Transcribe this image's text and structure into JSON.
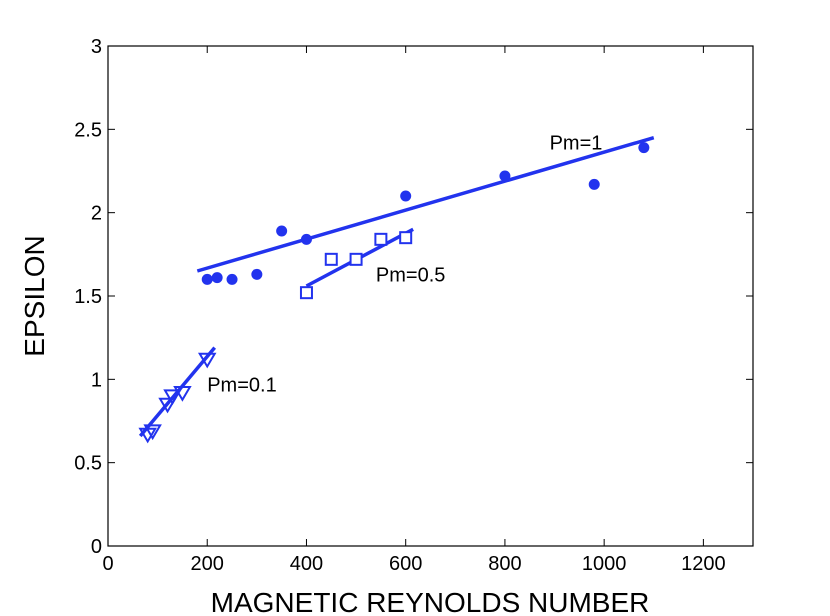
{
  "chart_data": {
    "type": "scatter",
    "title": "",
    "xlabel": "MAGNETIC REYNOLDS NUMBER",
    "ylabel": "EPSILON",
    "xlim": [
      0,
      1300
    ],
    "ylim": [
      0,
      3
    ],
    "xticks": [
      "0",
      "200",
      "400",
      "600",
      "800",
      "1000",
      "1200"
    ],
    "yticks": [
      "0",
      "0.5",
      "1",
      "1.5",
      "2",
      "2.5",
      "3"
    ],
    "color": "#2233ee",
    "grid": false,
    "series": [
      {
        "name": "Pm=1",
        "marker": "circle",
        "points": [
          [
            200,
            1.6
          ],
          [
            220,
            1.61
          ],
          [
            250,
            1.6
          ],
          [
            300,
            1.63
          ],
          [
            350,
            1.89
          ],
          [
            400,
            1.84
          ],
          [
            600,
            2.1
          ],
          [
            800,
            2.22
          ],
          [
            980,
            2.17
          ],
          [
            1080,
            2.39
          ]
        ],
        "fit": [
          [
            180,
            1.65
          ],
          [
            1100,
            2.45
          ]
        ]
      },
      {
        "name": "Pm=0.5",
        "marker": "square",
        "points": [
          [
            400,
            1.52
          ],
          [
            450,
            1.72
          ],
          [
            500,
            1.72
          ],
          [
            550,
            1.84
          ],
          [
            600,
            1.85
          ]
        ],
        "fit": [
          [
            400,
            1.56
          ],
          [
            615,
            1.9
          ]
        ]
      },
      {
        "name": "Pm=0.1",
        "marker": "triangle-down",
        "points": [
          [
            80,
            0.67
          ],
          [
            90,
            0.69
          ],
          [
            120,
            0.85
          ],
          [
            130,
            0.9
          ],
          [
            150,
            0.92
          ],
          [
            200,
            1.12
          ]
        ],
        "fit": [
          [
            65,
            0.66
          ],
          [
            215,
            1.19
          ]
        ]
      }
    ],
    "annotations": [
      {
        "text": "Pm=1",
        "x": 890,
        "y": 2.42
      },
      {
        "text": "Pm=0.5",
        "x": 540,
        "y": 1.63
      },
      {
        "text": "Pm=0.1",
        "x": 200,
        "y": 0.97
      }
    ]
  }
}
